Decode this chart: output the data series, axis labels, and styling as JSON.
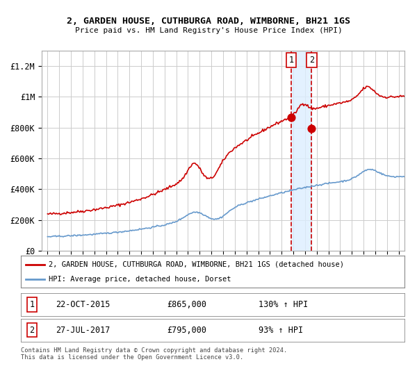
{
  "title_line1": "2, GARDEN HOUSE, CUTHBURGA ROAD, WIMBORNE, BH21 1GS",
  "title_line2": "Price paid vs. HM Land Registry's House Price Index (HPI)",
  "ylim": [
    0,
    1300000
  ],
  "yticks": [
    0,
    200000,
    400000,
    600000,
    800000,
    1000000,
    1200000
  ],
  "ytick_labels": [
    "£0",
    "£200K",
    "£400K",
    "£600K",
    "£800K",
    "£1M",
    "£1.2M"
  ],
  "red_color": "#cc0000",
  "blue_color": "#6699cc",
  "background_color": "#ffffff",
  "grid_color": "#cccccc",
  "transaction1_date": 2015.81,
  "transaction1_price": 865000,
  "transaction1_label": "1",
  "transaction2_date": 2017.57,
  "transaction2_price": 795000,
  "transaction2_label": "2",
  "legend_line1": "2, GARDEN HOUSE, CUTHBURGA ROAD, WIMBORNE, BH21 1GS (detached house)",
  "legend_line2": "HPI: Average price, detached house, Dorset",
  "table_row1": [
    "1",
    "22-OCT-2015",
    "£865,000",
    "130% ↑ HPI"
  ],
  "table_row2": [
    "2",
    "27-JUL-2017",
    "£795,000",
    "93% ↑ HPI"
  ],
  "footnote": "Contains HM Land Registry data © Crown copyright and database right 2024.\nThis data is licensed under the Open Government Licence v3.0.",
  "xmin": 1994.5,
  "xmax": 2025.5
}
